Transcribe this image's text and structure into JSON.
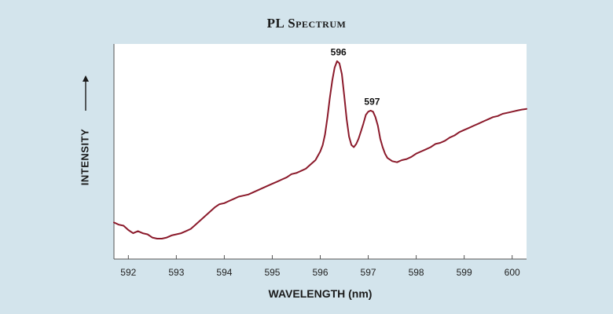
{
  "chart_data": {
    "type": "line",
    "title": "PL Spectrum",
    "xlabel": "WAVELENGTH (nm)",
    "ylabel": "INTENSITY",
    "xlim": [
      591.7,
      600.3
    ],
    "ylim": [
      0,
      100
    ],
    "xticks": [
      592,
      593,
      594,
      595,
      596,
      597,
      598,
      599,
      600
    ],
    "grid": false,
    "line_color": "#8b1a2b",
    "annotations": [
      {
        "text": "596",
        "x": 596.38,
        "y": 92.5
      },
      {
        "text": "597",
        "x": 597.08,
        "y": 69.5
      }
    ],
    "series": [
      {
        "x": [
          591.7,
          591.8,
          591.9,
          592.0,
          592.1,
          592.2,
          592.3,
          592.4,
          592.5,
          592.6,
          592.7,
          592.8,
          592.9,
          593.0,
          593.1,
          593.2,
          593.3,
          593.4,
          593.5,
          593.6,
          593.7,
          593.8,
          593.9,
          594.0,
          594.1,
          594.2,
          594.3,
          594.4,
          594.5,
          594.6,
          594.7,
          594.8,
          594.9,
          595.0,
          595.1,
          595.2,
          595.3,
          595.4,
          595.5,
          595.6,
          595.7,
          595.8,
          595.9,
          596.0,
          596.05,
          596.1,
          596.15,
          596.2,
          596.25,
          596.3,
          596.35,
          596.4,
          596.45,
          596.5,
          596.55,
          596.6,
          596.65,
          596.7,
          596.75,
          596.8,
          596.85,
          596.9,
          596.95,
          597.0,
          597.05,
          597.1,
          597.15,
          597.2,
          597.25,
          597.3,
          597.35,
          597.4,
          597.5,
          597.6,
          597.7,
          597.8,
          597.9,
          598.0,
          598.1,
          598.2,
          598.3,
          598.4,
          598.5,
          598.6,
          598.7,
          598.8,
          598.9,
          599.0,
          599.1,
          599.2,
          599.3,
          599.4,
          599.5,
          599.6,
          599.7,
          599.8,
          599.9,
          600.0,
          600.1,
          600.2,
          600.3
        ],
        "y": [
          17,
          16,
          15.5,
          13.5,
          12,
          13,
          12,
          11.5,
          10,
          9.5,
          9.5,
          10,
          11,
          11.5,
          12,
          13,
          14,
          16,
          18,
          20,
          22,
          24,
          25.5,
          26,
          27,
          28,
          29,
          29.5,
          30,
          31,
          32,
          33,
          34,
          35,
          36,
          37,
          38,
          39.5,
          40,
          41,
          42,
          44,
          46,
          50,
          53,
          58,
          66,
          75,
          83,
          89,
          92,
          91,
          86,
          76,
          65,
          57,
          53,
          52,
          53.5,
          56,
          59.5,
          63,
          67,
          68.5,
          69,
          68.5,
          66,
          62,
          56,
          52,
          49,
          47,
          45.5,
          45,
          46,
          46.5,
          47.5,
          49,
          50,
          51,
          52,
          53.5,
          54,
          55,
          56.5,
          57.5,
          59,
          60,
          61,
          62,
          63,
          64,
          65,
          66,
          66.5,
          67.5,
          68,
          68.5,
          69,
          69.5,
          69.8
        ]
      }
    ]
  }
}
